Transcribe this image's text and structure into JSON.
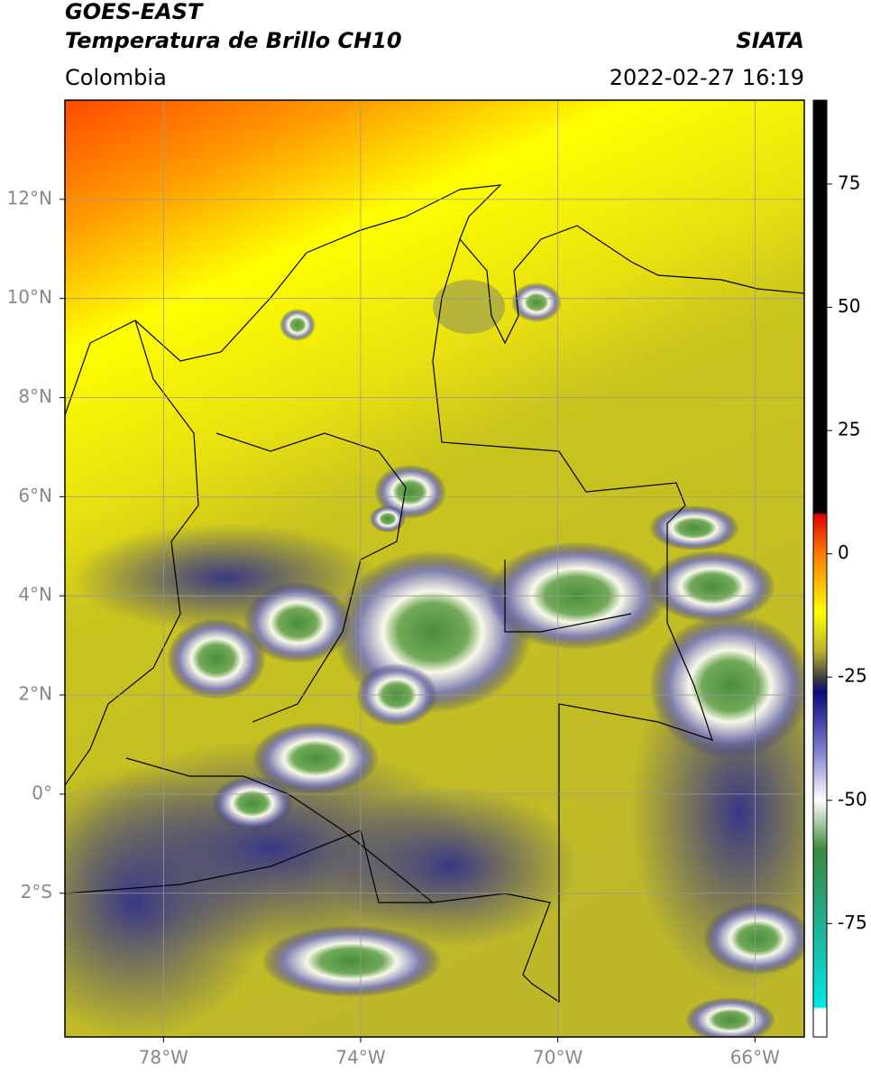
{
  "header": {
    "satellite": "GOES-EAST",
    "product": "Temperatura de Brillo CH10",
    "source": "SIATA",
    "region": "Colombia",
    "datetime": "2022-02-27 16:19"
  },
  "map": {
    "latlim": [
      -4.9,
      14
    ],
    "lonlim": [
      -80,
      -65
    ],
    "lat_ticks": [
      {
        "value": 12,
        "label": "12°N"
      },
      {
        "value": 10,
        "label": "10°N"
      },
      {
        "value": 8,
        "label": "8°N"
      },
      {
        "value": 6,
        "label": "6°N"
      },
      {
        "value": 4,
        "label": "4°N"
      },
      {
        "value": 2,
        "label": "2°N"
      },
      {
        "value": 0,
        "label": "0°"
      },
      {
        "value": -2,
        "label": "2°S"
      }
    ],
    "lon_ticks": [
      {
        "value": -78,
        "label": "78°W"
      },
      {
        "value": -74,
        "label": "74°W"
      },
      {
        "value": -70,
        "label": "70°W"
      },
      {
        "value": -66,
        "label": "66°W"
      }
    ]
  },
  "colorbar": {
    "lim": [
      -98,
      92
    ],
    "ticks": [
      75,
      50,
      25,
      0,
      -25,
      -50,
      -75
    ]
  }
}
